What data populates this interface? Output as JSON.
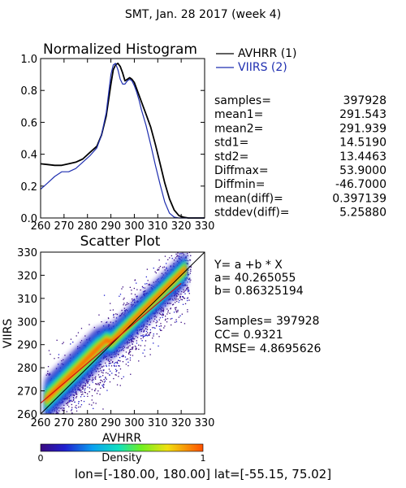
{
  "page_title": "SMT,  Jan. 28 2017 (week 4)",
  "colors": {
    "avhrr": "#000000",
    "viirs": "#1f2fb0",
    "fit_line": "#d01010",
    "diag_line": "#000000"
  },
  "histogram": {
    "title": "Normalized Histogram",
    "legend": [
      {
        "key": "avhrr",
        "label": "AVHRR (1)",
        "color": "#000000"
      },
      {
        "key": "viirs",
        "label": "VIIRS (2)",
        "color": "#1f2fb0"
      }
    ],
    "stats": [
      {
        "label": "samples=",
        "value": "397928"
      },
      {
        "label": "mean1=",
        "value": "291.543"
      },
      {
        "label": "mean2=",
        "value": "291.939"
      },
      {
        "label": "std1=",
        "value": "14.5190"
      },
      {
        "label": "std2=",
        "value": "13.4463"
      },
      {
        "label": "Diffmax=",
        "value": "53.9000"
      },
      {
        "label": "Diffmin=",
        "value": "-46.7000"
      },
      {
        "label": "mean(diff)=",
        "value": "0.397139"
      },
      {
        "label": "stddev(diff)=",
        "value": "5.25880"
      }
    ]
  },
  "scatter": {
    "title": "Scatter Plot",
    "equation": "Y= a +b * X",
    "a_line": "a= 40.265055",
    "b_line": "b= 0.86325194",
    "samples_line": "Samples= 397928",
    "cc_line": "CC=  0.9321",
    "rmse_line": "RMSE= 4.8695626"
  },
  "colorbar": {
    "min_label": "0",
    "max_label": "1",
    "title": "Density"
  },
  "footer": "lon=[-180.00, 180.00] lat=[-55.15, 75.02]",
  "chart_data": [
    {
      "type": "line",
      "title": "Normalized Histogram",
      "xlim": [
        260,
        330
      ],
      "ylim": [
        0,
        1
      ],
      "xticks": [
        "260",
        "270",
        "280",
        "290",
        "300",
        "310",
        "320",
        "330"
      ],
      "yticks": [
        "0.0",
        "0.2",
        "0.4",
        "0.6",
        "0.8",
        "1.0"
      ],
      "x": [
        260,
        263,
        266,
        269,
        272,
        275,
        278,
        281,
        284,
        286,
        288,
        290,
        291,
        292,
        293,
        294,
        295,
        296,
        297,
        298,
        299,
        300,
        301,
        302,
        303,
        305,
        307,
        309,
        311,
        313,
        315,
        317,
        319,
        321,
        323,
        325,
        330
      ],
      "series": [
        {
          "name": "AVHRR (1)",
          "color": "#000000",
          "values": [
            0.34,
            0.335,
            0.33,
            0.33,
            0.34,
            0.35,
            0.37,
            0.41,
            0.45,
            0.52,
            0.64,
            0.84,
            0.93,
            0.96,
            0.97,
            0.95,
            0.91,
            0.86,
            0.87,
            0.88,
            0.87,
            0.85,
            0.81,
            0.77,
            0.73,
            0.65,
            0.57,
            0.46,
            0.34,
            0.22,
            0.12,
            0.05,
            0.015,
            0.005,
            0.0,
            0.0,
            0.0
          ]
        },
        {
          "name": "VIIRS (2)",
          "color": "#1f2fb0",
          "values": [
            0.18,
            0.22,
            0.26,
            0.29,
            0.29,
            0.31,
            0.35,
            0.39,
            0.44,
            0.52,
            0.66,
            0.9,
            0.96,
            0.97,
            0.93,
            0.87,
            0.84,
            0.84,
            0.86,
            0.87,
            0.86,
            0.83,
            0.79,
            0.74,
            0.68,
            0.58,
            0.46,
            0.33,
            0.21,
            0.1,
            0.03,
            0.005,
            0.0,
            0.0,
            0.0,
            0.0,
            0.0
          ]
        }
      ]
    },
    {
      "type": "scatter",
      "title": "Scatter Plot",
      "xlabel": "AVHRR",
      "ylabel": "VIIRS",
      "xlim": [
        260,
        330
      ],
      "ylim": [
        260,
        330
      ],
      "xticks": [
        "260",
        "270",
        "280",
        "290",
        "300",
        "310",
        "320",
        "330"
      ],
      "yticks": [
        "260",
        "270",
        "280",
        "290",
        "300",
        "310",
        "320",
        "330"
      ],
      "fit": {
        "a": 40.265055,
        "b": 0.86325194
      },
      "color_scale": "density"
    }
  ]
}
